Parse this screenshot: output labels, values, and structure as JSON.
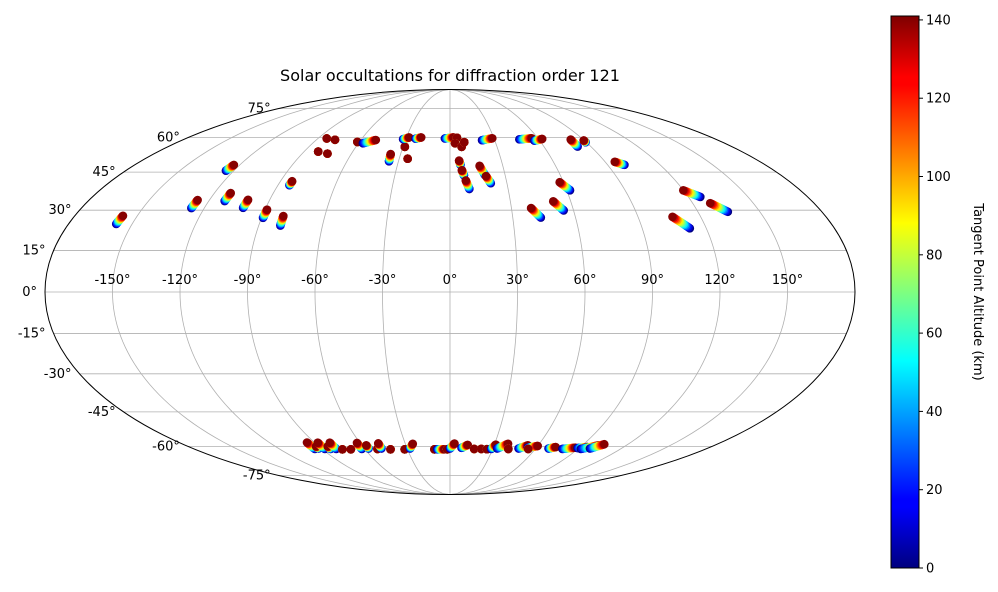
{
  "chart_data": {
    "type": "scatter",
    "projection": "mollweide",
    "title": "Solar occultations for diffraction order 121",
    "xlabel": "",
    "ylabel": "",
    "grid": true,
    "xticks": [
      -150,
      -120,
      -90,
      -60,
      -30,
      0,
      30,
      60,
      90,
      120,
      150
    ],
    "xtick_labels": [
      "-150°",
      "-120°",
      "-90°",
      "-60°",
      "-30°",
      "0°",
      "30°",
      "60°",
      "90°",
      "120°",
      "150°"
    ],
    "yticks": [
      -75,
      -60,
      -45,
      -30,
      -15,
      0,
      15,
      30,
      45,
      60,
      75
    ],
    "ytick_labels": [
      "-75°",
      "-60°",
      "-45°",
      "-30°",
      "-15°",
      "0°",
      "15°",
      "30°",
      "45°",
      "60°",
      "75°"
    ],
    "colorbar": {
      "label": "Tangent Point Altitude (km)",
      "colormap": "jet",
      "range": [
        0,
        141
      ],
      "ticks": [
        0,
        20,
        40,
        60,
        80,
        100,
        120,
        140
      ],
      "tick_labels": [
        "0",
        "20",
        "40",
        "60",
        "80",
        "100",
        "120",
        "140"
      ],
      "placement": "right"
    },
    "occultations": [
      {
        "lon_start": -157.5,
        "lat_start": 24.8,
        "lon_end": -156.9,
        "lat_end": 27.9
      },
      {
        "lon_start": -126.3,
        "lat_start": 30.8,
        "lon_end": -125.9,
        "lat_end": 33.9
      },
      {
        "lon_start": -124.4,
        "lat_start": 45.6,
        "lon_end": -123.4,
        "lat_end": 48.0
      },
      {
        "lon_start": -112.1,
        "lat_start": 33.5,
        "lon_end": -111.7,
        "lat_end": 36.6
      },
      {
        "lon_start": -101.1,
        "lat_start": 30.9,
        "lon_end": -100.8,
        "lat_end": 34.0
      },
      {
        "lon_start": -89.3,
        "lat_start": 27.1,
        "lon_end": -89.0,
        "lat_end": 30.2
      },
      {
        "lon_start": -84.0,
        "lat_start": 39.7,
        "lon_end": -83.8,
        "lat_end": 41.3
      },
      {
        "lon_start": -81.3,
        "lat_start": 53.7,
        "lon_end": -81.3,
        "lat_end": 53.7
      },
      {
        "lon_start": -79.8,
        "lat_start": 24.2,
        "lon_end": -79.9,
        "lat_end": 27.8
      },
      {
        "lon_start": -84.0,
        "lat_start": 59.6,
        "lon_end": -84.0,
        "lat_end": 59.6
      },
      {
        "lon_start": -77.5,
        "lat_start": 59.0,
        "lon_end": -77.5,
        "lat_end": 59.0
      },
      {
        "lon_start": -74.6,
        "lat_start": 52.8,
        "lon_end": -74.6,
        "lat_end": 52.8
      },
      {
        "lon_start": -61.3,
        "lat_start": 58.0,
        "lon_end": -61.3,
        "lat_end": 58.0
      },
      {
        "lon_start": -57.1,
        "lat_start": 57.4,
        "lon_end": -49.9,
        "lat_end": 58.9
      },
      {
        "lon_start": -35.5,
        "lat_start": 49.5,
        "lon_end": -36.0,
        "lat_end": 52.6
      },
      {
        "lon_start": -28.8,
        "lat_start": 55.8,
        "lon_end": -28.8,
        "lat_end": 55.8
      },
      {
        "lon_start": -25.0,
        "lat_start": 50.6,
        "lon_end": -25.0,
        "lat_end": 50.6
      },
      {
        "lon_start": -31.8,
        "lat_start": 59.3,
        "lon_end": -28.1,
        "lat_end": 60.1
      },
      {
        "lon_start": -23.4,
        "lat_start": 59.5,
        "lon_end": -19.8,
        "lat_end": 60.1
      },
      {
        "lon_start": -3.5,
        "lat_start": 59.6,
        "lon_end": 2.4,
        "lat_end": 60.1
      },
      {
        "lon_start": 4.8,
        "lat_start": 59.9,
        "lon_end": 4.8,
        "lat_end": 59.9
      },
      {
        "lon_start": 3.3,
        "lat_start": 57.4,
        "lon_end": 3.3,
        "lat_end": 57.4
      },
      {
        "lon_start": 7.4,
        "lat_start": 55.8,
        "lon_end": 7.4,
        "lat_end": 55.8
      },
      {
        "lon_start": 9.4,
        "lat_start": 57.9,
        "lon_end": 9.4,
        "lat_end": 57.9
      },
      {
        "lon_start": 6.0,
        "lat_start": 48.0,
        "lon_end": 5.3,
        "lat_end": 49.8
      },
      {
        "lon_start": 7.6,
        "lat_start": 43.7,
        "lon_end": 6.6,
        "lat_end": 45.8
      },
      {
        "lon_start": 10.0,
        "lat_start": 38.2,
        "lon_end": 8.4,
        "lat_end": 41.6
      },
      {
        "lon_start": 19.0,
        "lat_start": 43.8,
        "lon_end": 16.8,
        "lat_end": 47.6
      },
      {
        "lon_start": 21.5,
        "lat_start": 40.5,
        "lon_end": 19.5,
        "lat_end": 43.4
      },
      {
        "lon_start": 21.5,
        "lat_start": 58.8,
        "lon_end": 28.9,
        "lat_end": 59.7
      },
      {
        "lon_start": 43.4,
        "lat_start": 27.2,
        "lon_end": 39.6,
        "lat_end": 30.8
      },
      {
        "lon_start": 55.2,
        "lat_start": 29.9,
        "lon_end": 51.3,
        "lat_end": 33.4
      },
      {
        "lon_start": 61.7,
        "lat_start": 37.7,
        "lon_end": 58.0,
        "lat_end": 40.9
      },
      {
        "lon_start": 46.9,
        "lat_start": 59.2,
        "lon_end": 55.8,
        "lat_end": 59.7
      },
      {
        "lon_start": 56.4,
        "lat_start": 58.6,
        "lon_end": 62.6,
        "lat_end": 59.4
      },
      {
        "lon_start": 81.5,
        "lat_start": 55.9,
        "lon_end": 81.5,
        "lat_end": 59.1
      },
      {
        "lon_start": 89.6,
        "lat_start": 57.9,
        "lon_end": 89.6,
        "lat_end": 58.7
      },
      {
        "lon_start": 99.6,
        "lat_start": 48.0,
        "lon_end": 95.6,
        "lat_end": 49.3
      },
      {
        "lon_start": 112.3,
        "lat_start": 23.2,
        "lon_end": 106.5,
        "lat_end": 27.5
      },
      {
        "lon_start": 126.0,
        "lat_start": 35.1,
        "lon_end": 119.9,
        "lat_end": 37.7
      },
      {
        "lon_start": 134.5,
        "lat_start": 29.4,
        "lon_end": 128.7,
        "lat_end": 32.7
      },
      {
        "lon_start": -95.0,
        "lat_start": -61.2,
        "lon_end": -95.0,
        "lat_end": -58.2
      },
      {
        "lon_start": -92.0,
        "lat_start": -61.0,
        "lon_end": -92.0,
        "lat_end": -60.0
      },
      {
        "lon_start": -88.0,
        "lat_start": -61.2,
        "lon_end": -88.0,
        "lat_end": -58.3
      },
      {
        "lon_start": -84.0,
        "lat_start": -61.2,
        "lon_end": -84.0,
        "lat_end": -60.0
      },
      {
        "lon_start": -80.0,
        "lat_start": -61.2,
        "lon_end": -80.0,
        "lat_end": -58.3
      },
      {
        "lon_start": -76.0,
        "lat_start": -61.4,
        "lon_end": -76.0,
        "lat_end": -61.4
      },
      {
        "lon_start": -70.0,
        "lat_start": -61.4,
        "lon_end": -70.0,
        "lat_end": -61.4
      },
      {
        "lon_start": -62.0,
        "lat_start": -61.2,
        "lon_end": -62.0,
        "lat_end": -58.4
      },
      {
        "lon_start": -57.0,
        "lat_start": -61.0,
        "lon_end": -57.0,
        "lat_end": -59.5
      },
      {
        "lon_start": -51.0,
        "lat_start": -61.2,
        "lon_end": -51.0,
        "lat_end": -61.2
      },
      {
        "lon_start": -48.0,
        "lat_start": -61.0,
        "lon_end": -48.0,
        "lat_end": -58.6
      },
      {
        "lon_start": -42.0,
        "lat_start": -61.4,
        "lon_end": -42.0,
        "lat_end": -61.4
      },
      {
        "lon_start": -32.0,
        "lat_start": -61.4,
        "lon_end": -32.0,
        "lat_end": -61.4
      },
      {
        "lon_start": -28.0,
        "lat_start": -61.0,
        "lon_end": -25.0,
        "lat_end": -58.8
      },
      {
        "lon_start": -11.0,
        "lat_start": -61.4,
        "lon_end": -11.0,
        "lat_end": -61.4
      },
      {
        "lon_start": -9.0,
        "lat_start": -61.4,
        "lon_end": -4.0,
        "lat_end": -61.4
      },
      {
        "lon_start": -2.0,
        "lat_start": -61.4,
        "lon_end": -2.0,
        "lat_end": -61.4
      },
      {
        "lon_start": 0.0,
        "lat_start": -61.0,
        "lon_end": 3.0,
        "lat_end": -58.7
      },
      {
        "lon_start": 8.0,
        "lat_start": -60.7,
        "lon_end": 12.0,
        "lat_end": -59.3
      },
      {
        "lon_start": 17.0,
        "lat_start": -61.2,
        "lon_end": 17.0,
        "lat_end": -61.2
      },
      {
        "lon_start": 22.0,
        "lat_start": -61.2,
        "lon_end": 22.0,
        "lat_end": -61.2
      },
      {
        "lon_start": 26.0,
        "lat_start": -61.3,
        "lon_end": 26.0,
        "lat_end": -61.3
      },
      {
        "lon_start": 29.0,
        "lat_start": -61.2,
        "lon_end": 31.0,
        "lat_end": -59.2
      },
      {
        "lon_start": 33.0,
        "lat_start": -61.0,
        "lon_end": 39.0,
        "lat_end": -58.8
      },
      {
        "lon_start": 41.0,
        "lat_start": -61.2,
        "lon_end": 41.0,
        "lat_end": -61.2
      },
      {
        "lon_start": 48.0,
        "lat_start": -61.0,
        "lon_end": 53.0,
        "lat_end": -59.5
      },
      {
        "lon_start": 54.0,
        "lat_start": -60.6,
        "lon_end": 60.0,
        "lat_end": -59.8
      },
      {
        "lon_start": 55.0,
        "lat_start": -61.2,
        "lon_end": 55.0,
        "lat_end": -61.2
      },
      {
        "lon_start": 69.0,
        "lat_start": -61.0,
        "lon_end": 73.0,
        "lat_end": -60.3
      },
      {
        "lon_start": 79.0,
        "lat_start": -61.2,
        "lon_end": 87.0,
        "lat_end": -60.6
      },
      {
        "lon_start": 89.0,
        "lat_start": -60.8,
        "lon_end": 95.0,
        "lat_end": -60.3
      },
      {
        "lon_start": 92.0,
        "lat_start": -61.2,
        "lon_end": 101.0,
        "lat_end": -59.5
      },
      {
        "lon_start": 98.0,
        "lat_start": -61.0,
        "lon_end": 104.0,
        "lat_end": -59.0
      }
    ]
  }
}
